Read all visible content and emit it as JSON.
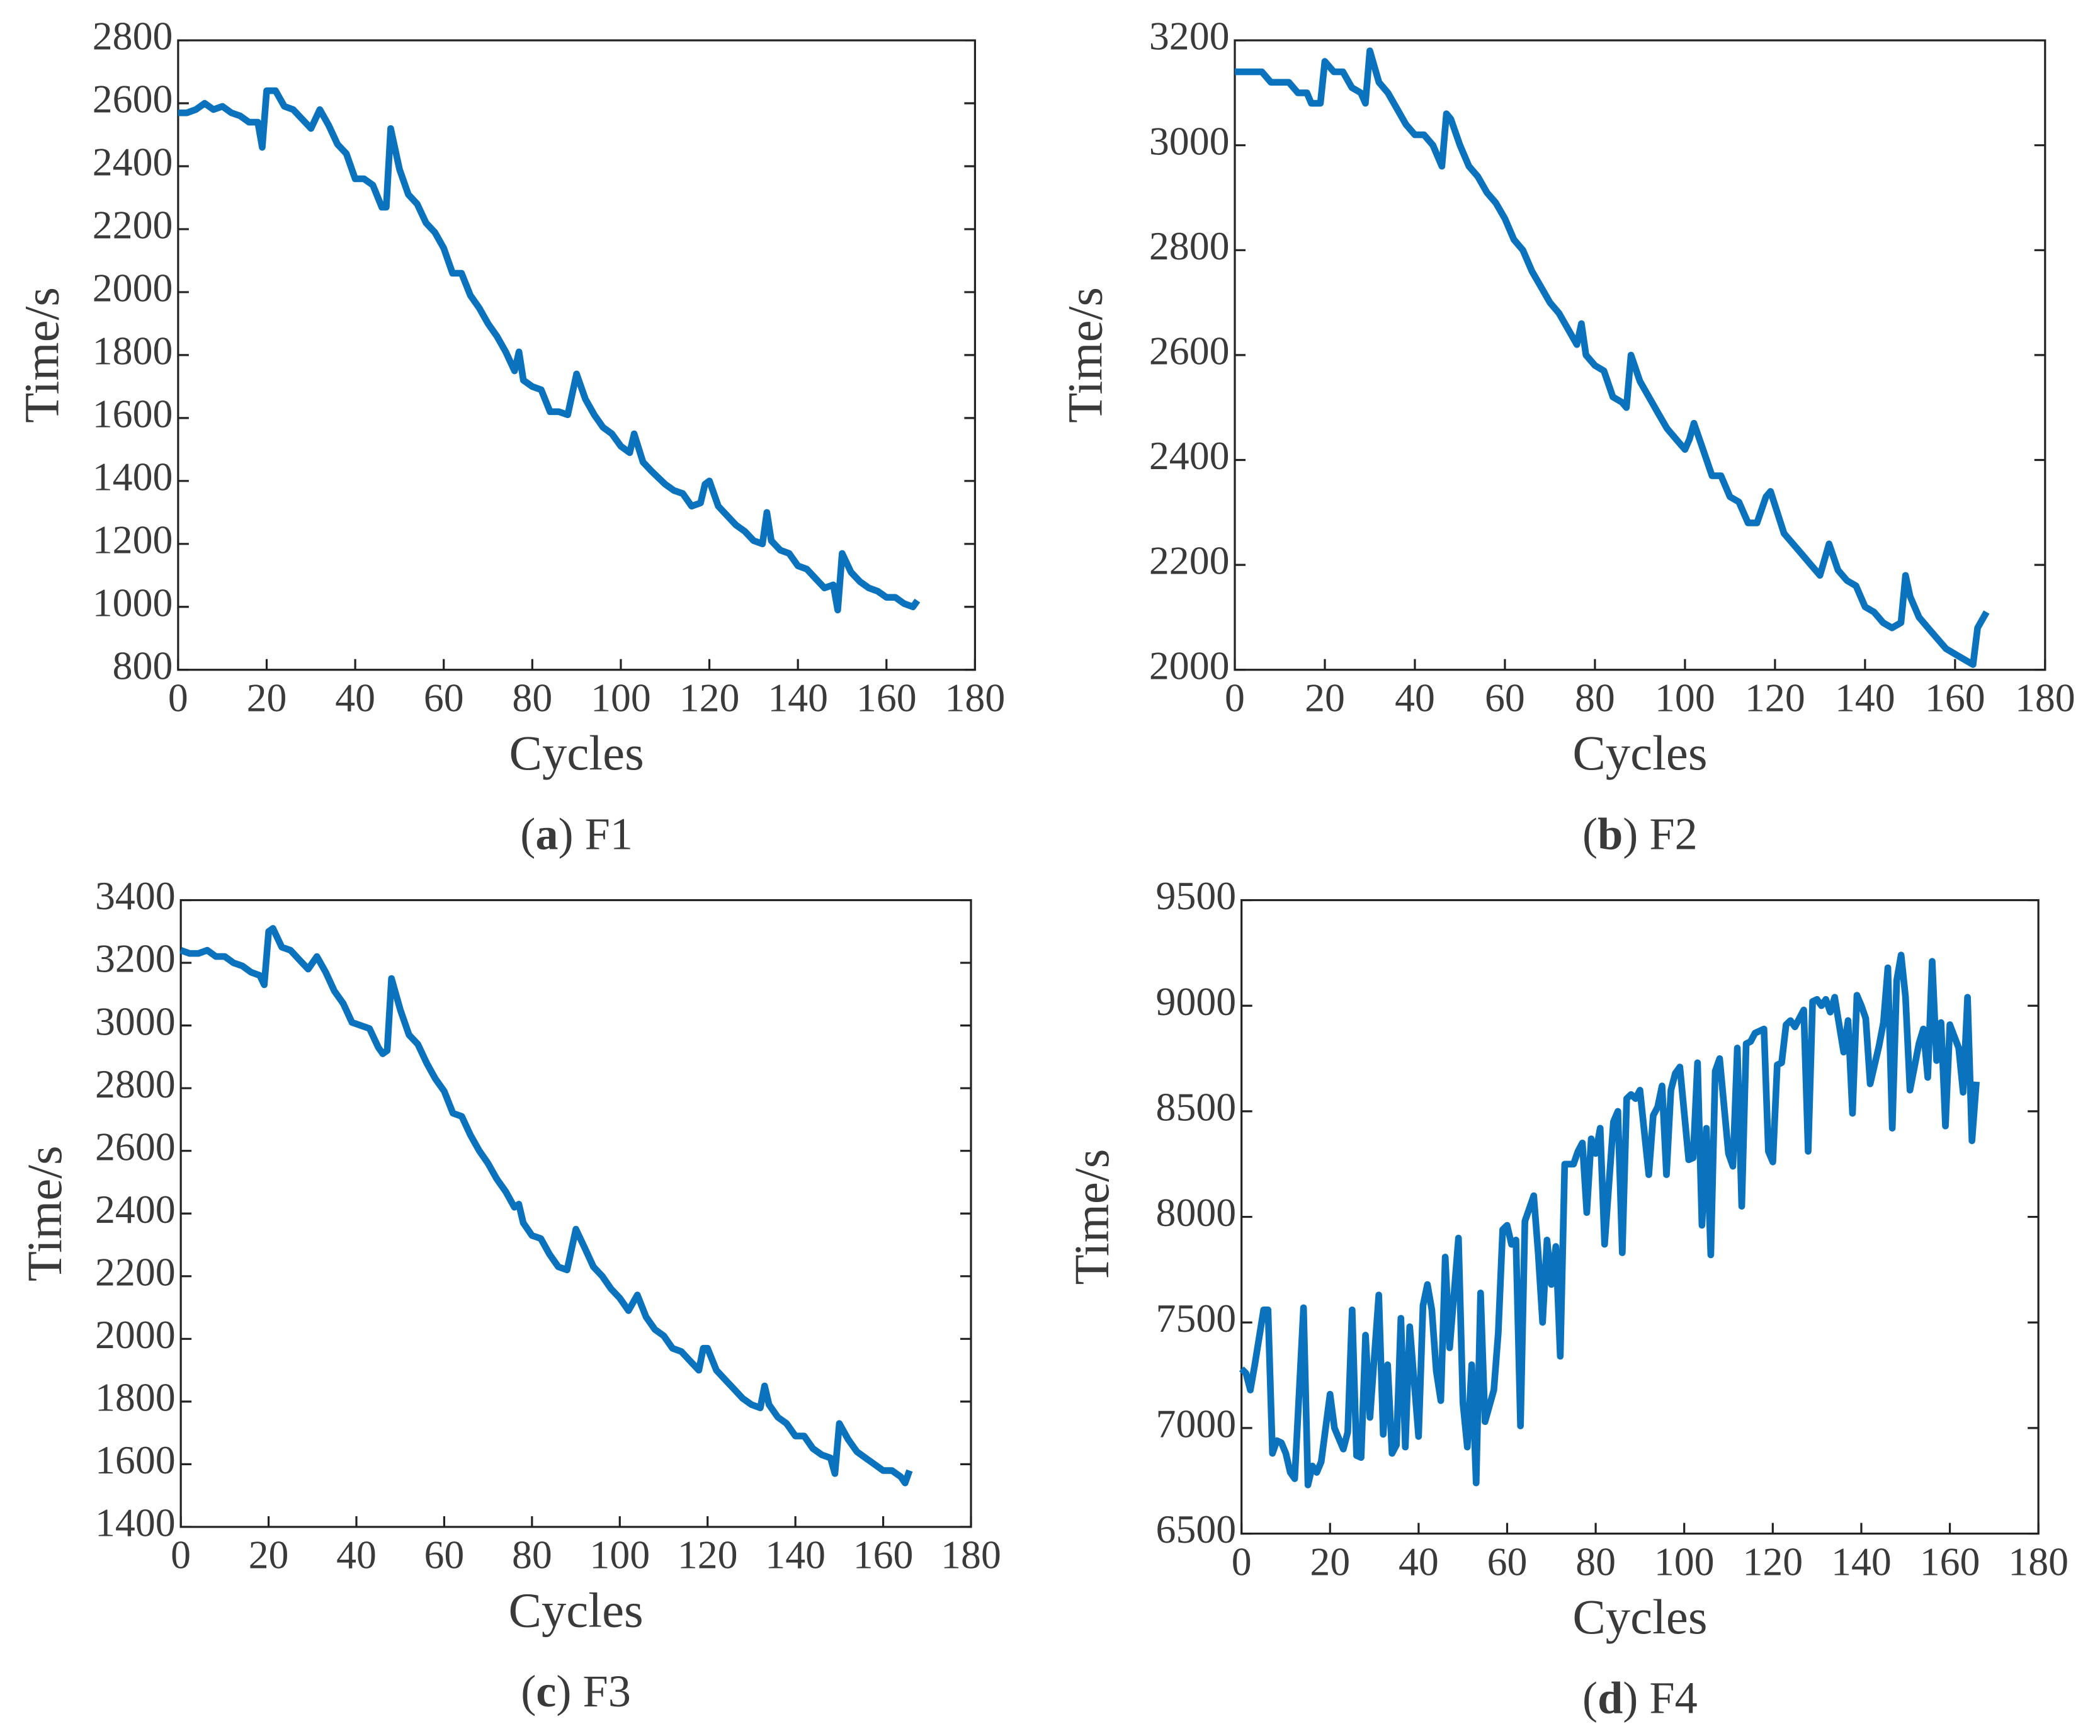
{
  "chart_data": [
    {
      "type": "line",
      "caption": [
        "(",
        "a",
        ") F1"
      ],
      "xlabel": "Cycles",
      "ylabel": "Time/s",
      "color": "#0b72bd",
      "xlim": [
        0,
        180
      ],
      "xticks": [
        0,
        20,
        40,
        60,
        80,
        100,
        120,
        140,
        160,
        180
      ],
      "ylim": [
        800,
        2800
      ],
      "yticks": [
        800,
        1000,
        1200,
        1400,
        1600,
        1800,
        2000,
        2200,
        2400,
        2600,
        2800
      ],
      "x": [
        0,
        2,
        4,
        6,
        8,
        10,
        12,
        14,
        16,
        18,
        19,
        20,
        22,
        24,
        26,
        28,
        30,
        32,
        34,
        36,
        38,
        40,
        42,
        44,
        46,
        47,
        48,
        50,
        52,
        54,
        56,
        58,
        60,
        62,
        64,
        66,
        68,
        70,
        72,
        74,
        76,
        77,
        78,
        80,
        82,
        84,
        86,
        88,
        90,
        92,
        94,
        96,
        98,
        100,
        102,
        103,
        105,
        107,
        110,
        112,
        114,
        116,
        118,
        119,
        120,
        122,
        124,
        126,
        128,
        130,
        132,
        133,
        134,
        136,
        138,
        140,
        142,
        144,
        146,
        148,
        149,
        150,
        152,
        154,
        156,
        158,
        160,
        162,
        164,
        166,
        167
      ],
      "values": [
        2570,
        2570,
        2580,
        2600,
        2580,
        2590,
        2570,
        2560,
        2540,
        2540,
        2460,
        2640,
        2640,
        2590,
        2580,
        2550,
        2520,
        2580,
        2530,
        2470,
        2440,
        2360,
        2360,
        2340,
        2270,
        2270,
        2520,
        2390,
        2310,
        2280,
        2220,
        2190,
        2140,
        2060,
        2060,
        1990,
        1950,
        1900,
        1860,
        1810,
        1750,
        1810,
        1720,
        1700,
        1690,
        1620,
        1620,
        1610,
        1740,
        1660,
        1610,
        1570,
        1550,
        1510,
        1490,
        1550,
        1460,
        1430,
        1390,
        1370,
        1360,
        1320,
        1330,
        1390,
        1400,
        1320,
        1290,
        1260,
        1240,
        1210,
        1200,
        1300,
        1210,
        1180,
        1170,
        1130,
        1120,
        1090,
        1060,
        1070,
        990,
        1170,
        1110,
        1080,
        1060,
        1050,
        1030,
        1030,
        1010,
        1000,
        1020
      ]
    },
    {
      "type": "line",
      "caption": [
        "(",
        "b",
        ") F2"
      ],
      "xlabel": "Cycles",
      "ylabel": "Time/s",
      "color": "#0b72bd",
      "xlim": [
        0,
        180
      ],
      "xticks": [
        0,
        20,
        40,
        60,
        80,
        100,
        120,
        140,
        160,
        180
      ],
      "ylim": [
        2000,
        3200
      ],
      "yticks": [
        2000,
        2200,
        2400,
        2600,
        2800,
        3000,
        3200
      ],
      "x": [
        0,
        4,
        6,
        8,
        12,
        14,
        16,
        17,
        19,
        20,
        22,
        24,
        26,
        28,
        29,
        30,
        32,
        34,
        36,
        38,
        40,
        42,
        44,
        46,
        47,
        48,
        50,
        52,
        54,
        56,
        58,
        60,
        62,
        64,
        66,
        68,
        70,
        72,
        74,
        76,
        77,
        78,
        80,
        82,
        84,
        86,
        87,
        88,
        90,
        92,
        94,
        96,
        98,
        100,
        101,
        102,
        104,
        106,
        108,
        110,
        112,
        114,
        116,
        118,
        119,
        122,
        124,
        126,
        128,
        130,
        132,
        134,
        136,
        138,
        140,
        142,
        144,
        146,
        148,
        149,
        150,
        152,
        154,
        156,
        158,
        160,
        162,
        164,
        165,
        167
      ],
      "values": [
        3140,
        3140,
        3140,
        3120,
        3120,
        3100,
        3100,
        3080,
        3080,
        3160,
        3140,
        3140,
        3110,
        3100,
        3080,
        3180,
        3120,
        3100,
        3070,
        3040,
        3020,
        3020,
        3000,
        2960,
        3060,
        3050,
        3000,
        2960,
        2940,
        2910,
        2890,
        2860,
        2820,
        2800,
        2760,
        2730,
        2700,
        2680,
        2650,
        2620,
        2660,
        2600,
        2580,
        2570,
        2520,
        2510,
        2500,
        2600,
        2550,
        2520,
        2490,
        2460,
        2440,
        2420,
        2440,
        2470,
        2420,
        2370,
        2370,
        2330,
        2320,
        2280,
        2280,
        2330,
        2340,
        2260,
        2240,
        2220,
        2200,
        2180,
        2240,
        2190,
        2170,
        2160,
        2120,
        2110,
        2090,
        2080,
        2090,
        2180,
        2140,
        2100,
        2080,
        2060,
        2040,
        2030,
        2020,
        2010,
        2080,
        2110
      ]
    },
    {
      "type": "line",
      "caption": [
        "(",
        "c",
        ") F3"
      ],
      "xlabel": "Cycles",
      "ylabel": "Time/s",
      "color": "#0b72bd",
      "xlim": [
        0,
        180
      ],
      "xticks": [
        0,
        20,
        40,
        60,
        80,
        100,
        120,
        140,
        160,
        180
      ],
      "ylim": [
        1400,
        3400
      ],
      "yticks": [
        1400,
        1600,
        1800,
        2000,
        2200,
        2400,
        2600,
        2800,
        3000,
        3200,
        3400
      ],
      "x": [
        0,
        2,
        4,
        6,
        8,
        10,
        12,
        14,
        16,
        18,
        19,
        20,
        21,
        23,
        25,
        27,
        29,
        31,
        33,
        35,
        37,
        39,
        41,
        43,
        45,
        46,
        47,
        48,
        50,
        52,
        54,
        56,
        58,
        60,
        62,
        64,
        66,
        68,
        70,
        72,
        74,
        76,
        77,
        78,
        80,
        82,
        84,
        86,
        88,
        90,
        92,
        94,
        96,
        98,
        100,
        102,
        104,
        106,
        108,
        110,
        112,
        114,
        116,
        118,
        119,
        120,
        122,
        124,
        126,
        128,
        130,
        132,
        133,
        134,
        136,
        138,
        140,
        142,
        144,
        146,
        148,
        149,
        150,
        152,
        154,
        156,
        158,
        160,
        162,
        164,
        165,
        166
      ],
      "values": [
        3240,
        3230,
        3230,
        3240,
        3220,
        3220,
        3200,
        3190,
        3170,
        3160,
        3130,
        3300,
        3310,
        3250,
        3240,
        3210,
        3180,
        3220,
        3170,
        3110,
        3070,
        3010,
        3000,
        2990,
        2930,
        2910,
        2920,
        3150,
        3050,
        2970,
        2940,
        2880,
        2830,
        2790,
        2720,
        2710,
        2650,
        2600,
        2560,
        2510,
        2470,
        2420,
        2430,
        2370,
        2330,
        2320,
        2270,
        2230,
        2220,
        2350,
        2290,
        2230,
        2200,
        2160,
        2130,
        2090,
        2140,
        2070,
        2030,
        2010,
        1970,
        1960,
        1930,
        1900,
        1970,
        1970,
        1900,
        1870,
        1840,
        1810,
        1790,
        1780,
        1850,
        1790,
        1750,
        1730,
        1690,
        1690,
        1650,
        1630,
        1620,
        1570,
        1730,
        1680,
        1640,
        1620,
        1600,
        1580,
        1580,
        1560,
        1540,
        1580
      ]
    },
    {
      "type": "line",
      "caption": [
        "(",
        "d",
        ") F4"
      ],
      "xlabel": "Cycles",
      "ylabel": "Time/s",
      "color": "#0b72bd",
      "xlim": [
        0,
        180
      ],
      "xticks": [
        0,
        20,
        40,
        60,
        80,
        100,
        120,
        140,
        160,
        180
      ],
      "ylim": [
        6500,
        9500
      ],
      "yticks": [
        6500,
        7000,
        7500,
        8000,
        8500,
        9000,
        9500
      ],
      "x": [
        0,
        1,
        2,
        3,
        5,
        6,
        7,
        8,
        9,
        10,
        11,
        12,
        14,
        15,
        16,
        17,
        18,
        19,
        20,
        21,
        23,
        24,
        25,
        26,
        27,
        28,
        29,
        31,
        32,
        33,
        34,
        35,
        36,
        37,
        38,
        40,
        41,
        42,
        43,
        44,
        45,
        46,
        47,
        49,
        50,
        51,
        52,
        53,
        54,
        55,
        57,
        58,
        59,
        60,
        61,
        62,
        63,
        64,
        66,
        67,
        68,
        69,
        70,
        71,
        72,
        73,
        75,
        76,
        77,
        78,
        79,
        80,
        81,
        82,
        84,
        85,
        86,
        87,
        88,
        89,
        90,
        92,
        93,
        94,
        95,
        96,
        97,
        98,
        99,
        101,
        102,
        103,
        104,
        105,
        106,
        107,
        108,
        110,
        111,
        112,
        113,
        114,
        115,
        116,
        118,
        119,
        120,
        121,
        122,
        123,
        124,
        125,
        127,
        128,
        129,
        130,
        131,
        132,
        133,
        134,
        136,
        137,
        138,
        139,
        140,
        141,
        142,
        144,
        145,
        146,
        147,
        148,
        149,
        150,
        151,
        153,
        154,
        155,
        156,
        157,
        158,
        159,
        160,
        162,
        163,
        164,
        165,
        166
      ],
      "values": [
        7280,
        7260,
        7180,
        7300,
        7560,
        7560,
        6880,
        6940,
        6930,
        6880,
        6790,
        6760,
        7570,
        6730,
        6820,
        6790,
        6840,
        7000,
        7160,
        7000,
        6900,
        6980,
        7560,
        6870,
        6860,
        7440,
        7050,
        7630,
        6970,
        7300,
        6880,
        6920,
        7520,
        6910,
        7480,
        6960,
        7580,
        7680,
        7560,
        7270,
        7130,
        7810,
        7380,
        7900,
        7120,
        6910,
        7300,
        6740,
        7640,
        7030,
        7180,
        7450,
        7940,
        7960,
        7870,
        7890,
        7010,
        7980,
        8100,
        7830,
        7500,
        7890,
        7680,
        7860,
        7340,
        8250,
        8250,
        8310,
        8350,
        8020,
        8370,
        8300,
        8420,
        7870,
        8450,
        8500,
        7830,
        8560,
        8580,
        8560,
        8600,
        8200,
        8480,
        8520,
        8620,
        8200,
        8600,
        8680,
        8710,
        8270,
        8280,
        8730,
        7960,
        8420,
        7820,
        8690,
        8750,
        8300,
        8240,
        8800,
        8050,
        8820,
        8830,
        8870,
        8890,
        8310,
        8260,
        8720,
        8730,
        8910,
        8930,
        8900,
        8980,
        8310,
        9020,
        9030,
        9000,
        9030,
        8970,
        9040,
        8780,
        8930,
        8490,
        9050,
        9000,
        8940,
        8630,
        8810,
        8920,
        9180,
        8420,
        9120,
        9240,
        9040,
        8600,
        8820,
        8890,
        8660,
        9210,
        8740,
        8920,
        8430,
        8910,
        8800,
        8590,
        9040,
        8360,
        8640
      ]
    }
  ]
}
